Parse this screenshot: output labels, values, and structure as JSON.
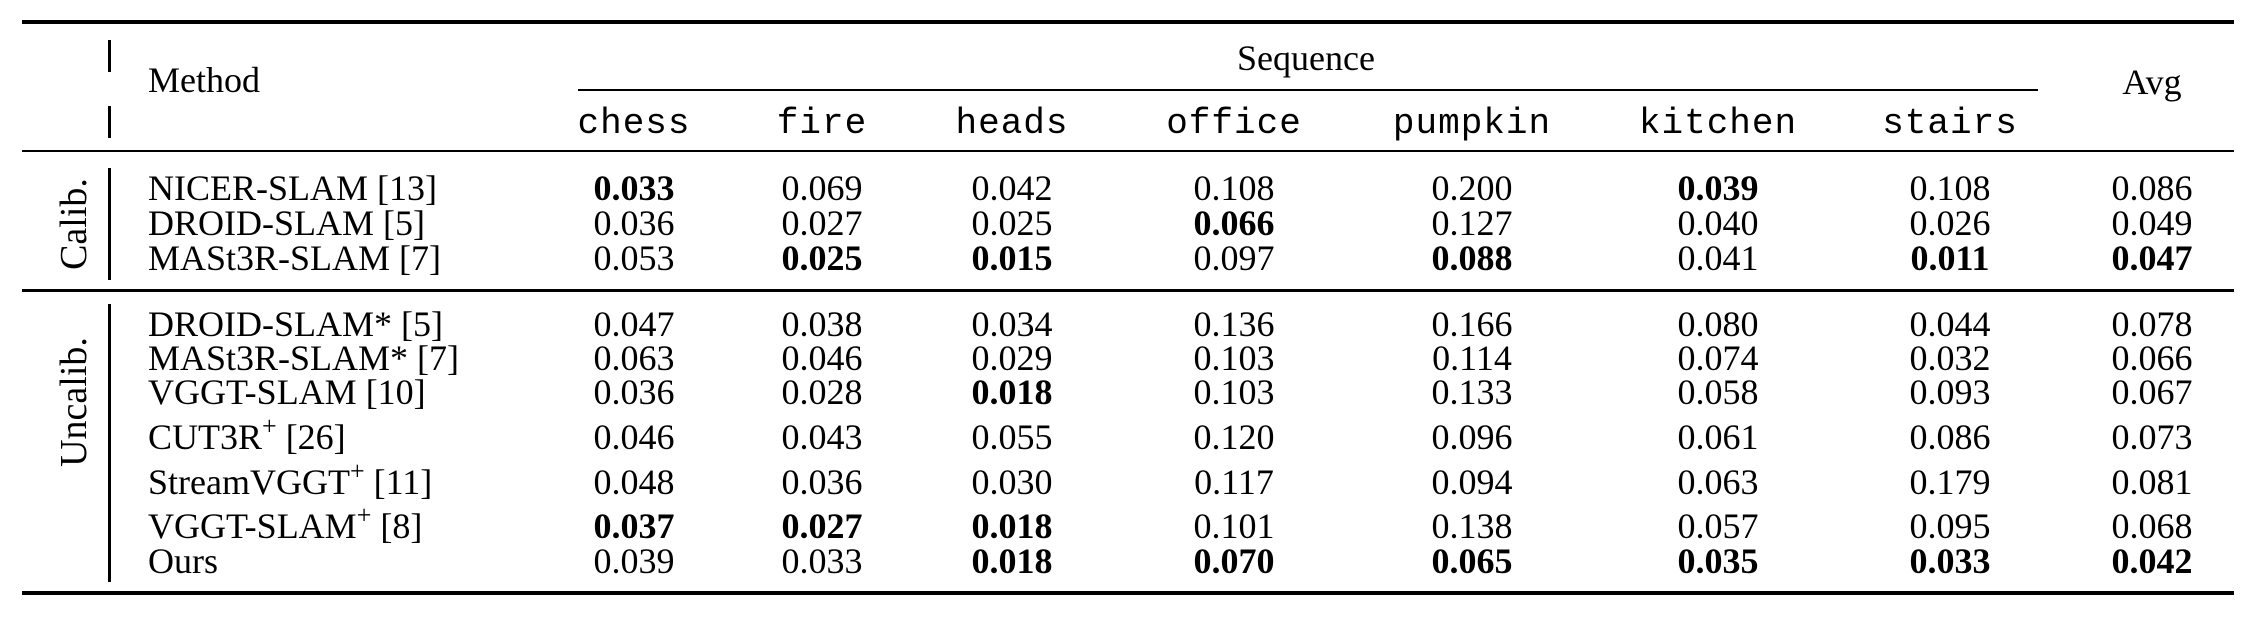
{
  "header": {
    "method": "Method",
    "sequence": "Sequence",
    "avg": "Avg",
    "columns": [
      "chess",
      "fire",
      "heads",
      "office",
      "pumpkin",
      "kitchen",
      "stairs"
    ]
  },
  "groups": [
    {
      "label": "Calib.",
      "rows": [
        {
          "method": "NICER-SLAM [13]",
          "sup": "",
          "ref": "",
          "values": [
            "0.033",
            "0.069",
            "0.042",
            "0.108",
            "0.200",
            "0.039",
            "0.108",
            "0.086"
          ],
          "bold": [
            true,
            false,
            false,
            false,
            false,
            true,
            false,
            false
          ]
        },
        {
          "method": "DROID-SLAM [5]",
          "sup": "",
          "ref": "",
          "values": [
            "0.036",
            "0.027",
            "0.025",
            "0.066",
            "0.127",
            "0.040",
            "0.026",
            "0.049"
          ],
          "bold": [
            false,
            false,
            false,
            true,
            false,
            false,
            false,
            false
          ]
        },
        {
          "method": "MASt3R-SLAM [7]",
          "sup": "",
          "ref": "",
          "values": [
            "0.053",
            "0.025",
            "0.015",
            "0.097",
            "0.088",
            "0.041",
            "0.011",
            "0.047"
          ],
          "bold": [
            false,
            true,
            true,
            false,
            true,
            false,
            true,
            true
          ]
        }
      ]
    },
    {
      "label": "Uncalib.",
      "rows": [
        {
          "method": "DROID-SLAM* [5]",
          "sup": "",
          "ref": "",
          "values": [
            "0.047",
            "0.038",
            "0.034",
            "0.136",
            "0.166",
            "0.080",
            "0.044",
            "0.078"
          ],
          "bold": [
            false,
            false,
            false,
            false,
            false,
            false,
            false,
            false
          ]
        },
        {
          "method": "MASt3R-SLAM* [7]",
          "sup": "",
          "ref": "",
          "values": [
            "0.063",
            "0.046",
            "0.029",
            "0.103",
            "0.114",
            "0.074",
            "0.032",
            "0.066"
          ],
          "bold": [
            false,
            false,
            false,
            false,
            false,
            false,
            false,
            false
          ]
        },
        {
          "method": "VGGT-SLAM [10]",
          "sup": "",
          "ref": "",
          "values": [
            "0.036",
            "0.028",
            "0.018",
            "0.103",
            "0.133",
            "0.058",
            "0.093",
            "0.067"
          ],
          "bold": [
            false,
            false,
            true,
            false,
            false,
            false,
            false,
            false
          ]
        },
        {
          "method": "CUT3R",
          "sup": "+",
          "ref": " [26]",
          "values": [
            "0.046",
            "0.043",
            "0.055",
            "0.120",
            "0.096",
            "0.061",
            "0.086",
            "0.073"
          ],
          "bold": [
            false,
            false,
            false,
            false,
            false,
            false,
            false,
            false
          ]
        },
        {
          "method": "StreamVGGT",
          "sup": "+",
          "ref": " [11]",
          "values": [
            "0.048",
            "0.036",
            "0.030",
            "0.117",
            "0.094",
            "0.063",
            "0.179",
            "0.081"
          ],
          "bold": [
            false,
            false,
            false,
            false,
            false,
            false,
            false,
            false
          ]
        },
        {
          "method": "VGGT-SLAM",
          "sup": "+",
          "ref": " [8]",
          "values": [
            "0.037",
            "0.027",
            "0.018",
            "0.101",
            "0.138",
            "0.057",
            "0.095",
            "0.068"
          ],
          "bold": [
            true,
            true,
            true,
            false,
            false,
            false,
            false,
            false
          ]
        },
        {
          "method": "Ours",
          "sup": "",
          "ref": "",
          "values": [
            "0.039",
            "0.033",
            "0.018",
            "0.070",
            "0.065",
            "0.035",
            "0.033",
            "0.042"
          ],
          "bold": [
            false,
            false,
            true,
            true,
            true,
            true,
            true,
            true
          ]
        }
      ]
    }
  ]
}
